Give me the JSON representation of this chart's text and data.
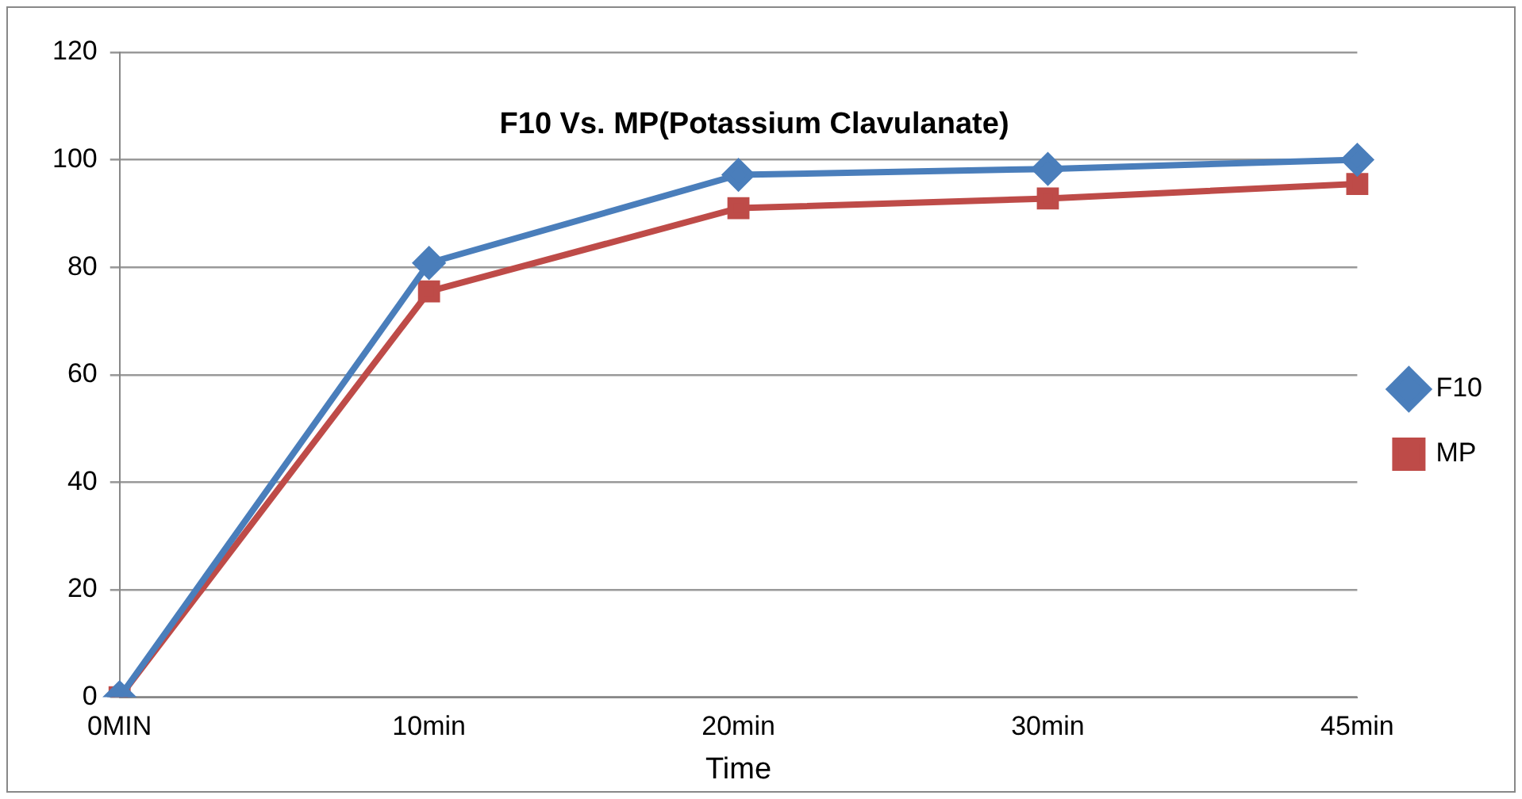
{
  "chart_data": {
    "type": "line",
    "title": "F10 Vs. MP(Potassium Clavulanate)",
    "xlabel": "Time",
    "categories": [
      "0MIN",
      "10min",
      "20min",
      "30min",
      "45min"
    ],
    "series": [
      {
        "name": "F10",
        "color": "#4a7ebb",
        "marker": "diamond",
        "values": [
          0,
          80.8,
          97.2,
          98.3,
          100
        ]
      },
      {
        "name": "MP",
        "color": "#be4b48",
        "marker": "square",
        "values": [
          0,
          75.5,
          91,
          92.8,
          95.5
        ]
      }
    ],
    "ylim": [
      0,
      120
    ],
    "yticks": [
      0,
      20,
      40,
      60,
      80,
      100,
      120
    ],
    "grid": "y",
    "legend": "right",
    "line_style": "solid"
  }
}
